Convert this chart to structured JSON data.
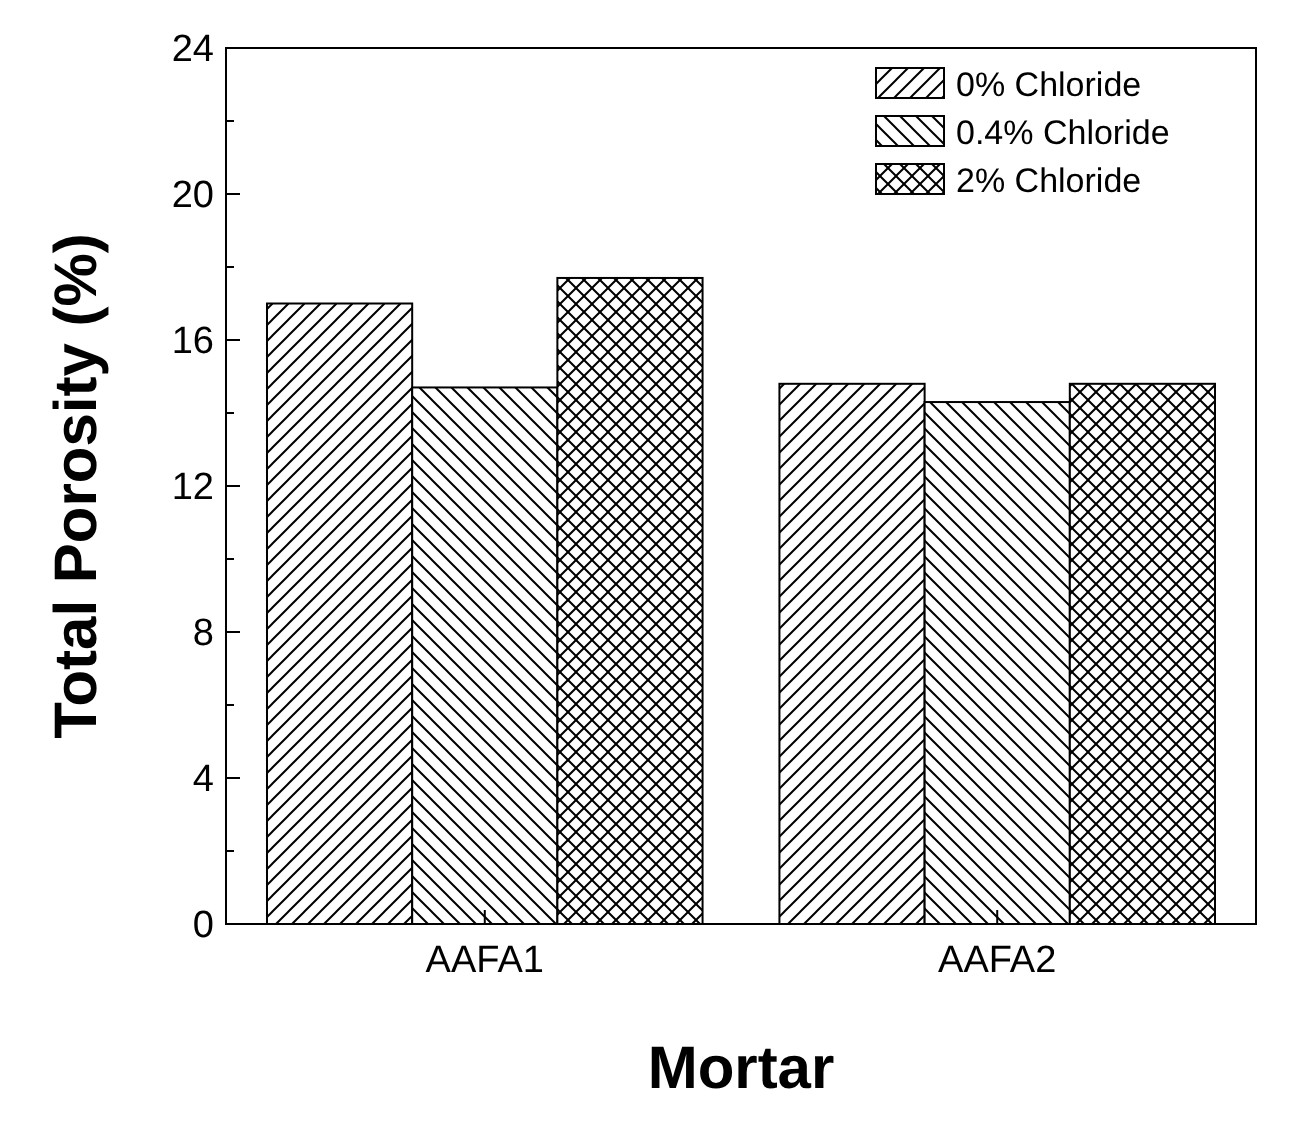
{
  "chart_data": {
    "type": "bar",
    "xlabel": "Mortar",
    "ylabel": "Total Porosity (%)",
    "categories": [
      "AAFA1",
      "AAFA2"
    ],
    "series": [
      {
        "name": "0% Chloride",
        "color": "#000000",
        "values": [
          17.0,
          14.8
        ]
      },
      {
        "name": "0.4% Chloride",
        "color": "#000000",
        "values": [
          14.7,
          14.3
        ]
      },
      {
        "name": "2% Chloride",
        "color": "#000000",
        "values": [
          17.7,
          14.8
        ]
      }
    ],
    "ylim": [
      0,
      24
    ],
    "yticks": [
      0,
      {
        "value": 2,
        "label": null
      },
      4,
      {
        "value": 6,
        "label": null
      },
      8,
      {
        "value": 10,
        "label": null
      },
      12,
      {
        "value": 14,
        "label": null
      },
      16,
      {
        "value": 18,
        "label": null
      },
      20,
      {
        "value": 22,
        "label": null
      },
      24
    ],
    "legend": "top right",
    "grid": false
  }
}
